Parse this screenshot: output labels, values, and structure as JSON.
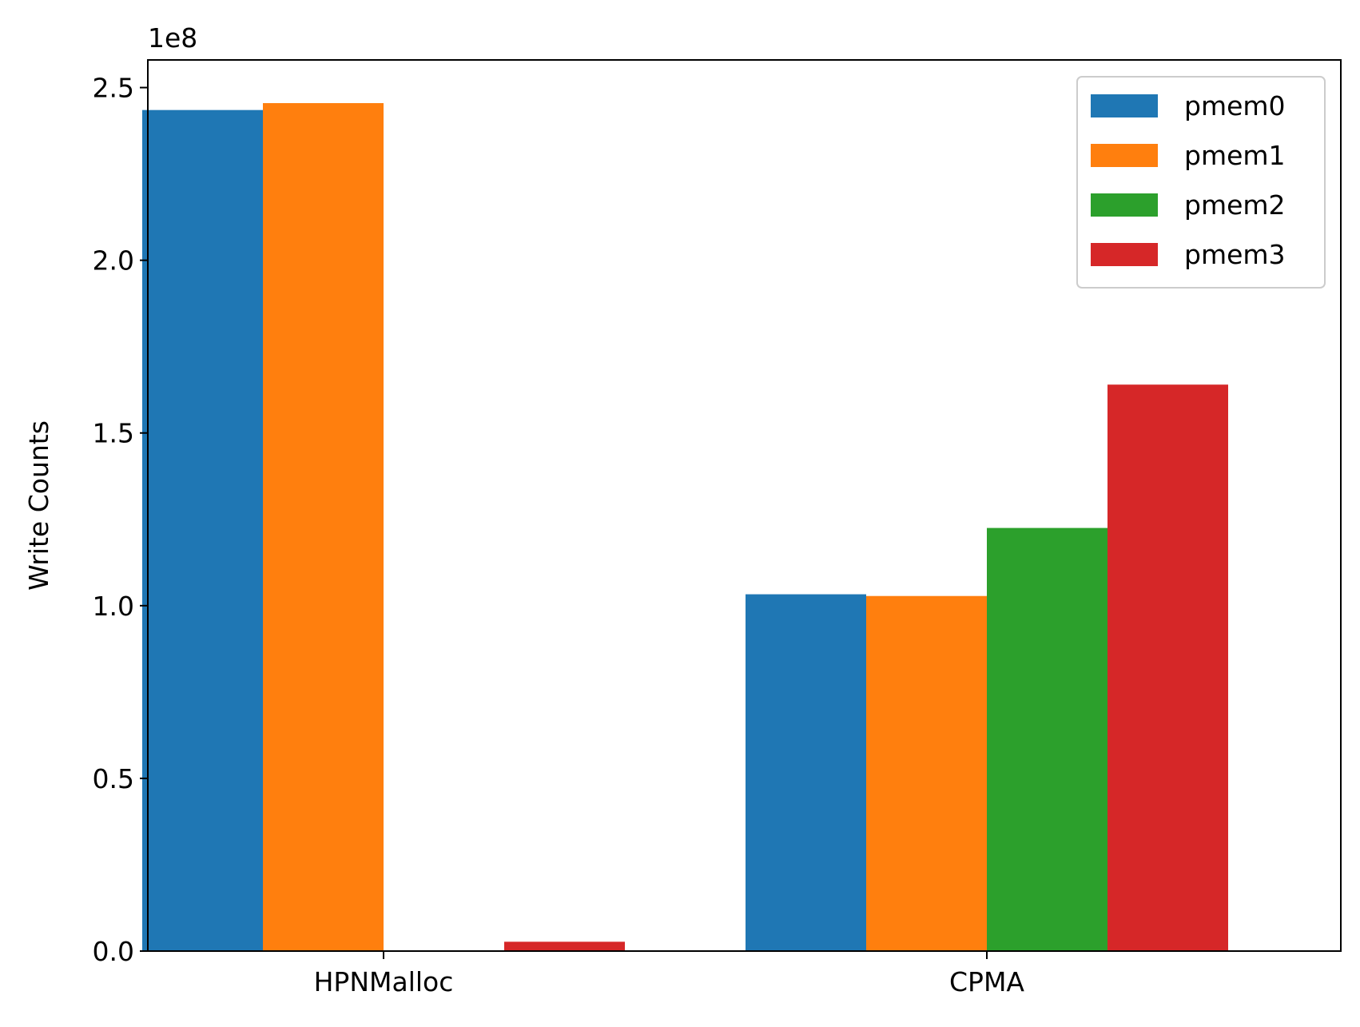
{
  "chart_data": {
    "type": "bar",
    "categories": [
      "HPNMalloc",
      "CPMA"
    ],
    "series": [
      {
        "name": "pmem0",
        "color": "#1f77b4",
        "values": [
          243500000,
          103300000
        ]
      },
      {
        "name": "pmem1",
        "color": "#ff7f0e",
        "values": [
          245500000,
          102800000
        ]
      },
      {
        "name": "pmem2",
        "color": "#2ca02c",
        "values": [
          0,
          122500000
        ]
      },
      {
        "name": "pmem3",
        "color": "#d62728",
        "values": [
          2700000,
          164000000
        ]
      }
    ],
    "title": "",
    "xlabel": "",
    "ylabel": "Write Counts",
    "y_offset_label": "1e8",
    "ylim": [
      0,
      258000000
    ],
    "yticks": [
      0,
      50000000,
      100000000,
      150000000,
      200000000,
      250000000
    ],
    "ytick_labels": [
      "0.0",
      "0.5",
      "1.0",
      "1.5",
      "2.0",
      "2.5"
    ],
    "legend_position": "top-right",
    "grid": false
  }
}
